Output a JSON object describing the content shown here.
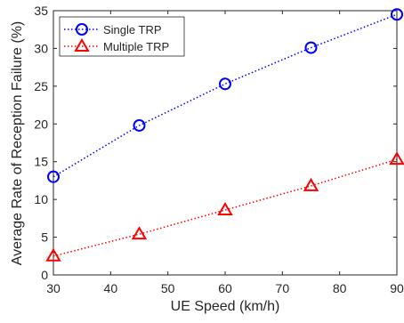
{
  "chart_data": {
    "type": "line",
    "title": "",
    "xlabel": "UE Speed (km/h)",
    "ylabel": "Average Rate of Reception Failure (%)",
    "xlim": [
      30,
      90
    ],
    "ylim": [
      0,
      35
    ],
    "xticks": [
      30,
      40,
      50,
      60,
      70,
      80,
      90
    ],
    "yticks": [
      0,
      5,
      10,
      15,
      20,
      25,
      30,
      35
    ],
    "grid": false,
    "legend_position": "top-left",
    "x": [
      30,
      45,
      60,
      75,
      90
    ],
    "series": [
      {
        "name": "Single TRP",
        "values": [
          13.0,
          19.8,
          25.3,
          30.1,
          34.5
        ],
        "color": "#0000ff",
        "marker": "circle",
        "line_style": "dotted"
      },
      {
        "name": "Multiple TRP",
        "values": [
          2.5,
          5.4,
          8.6,
          11.8,
          15.3
        ],
        "color": "#ff0000",
        "marker": "triangle",
        "line_style": "dotted"
      }
    ]
  }
}
